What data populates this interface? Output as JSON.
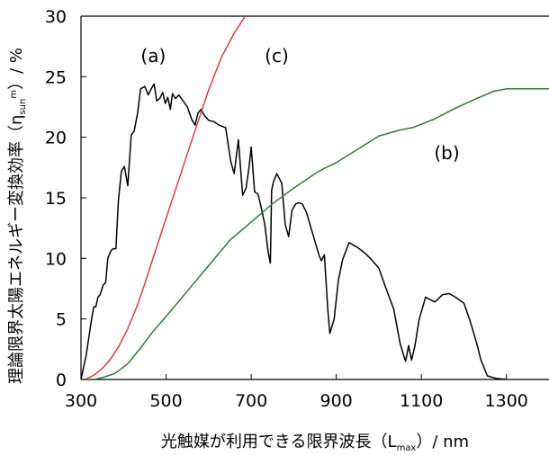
{
  "chart_data": {
    "type": "line",
    "xlabel_parts": [
      "光触媒が利用できる限界波長（L",
      "max",
      "）/ nm"
    ],
    "ylabel_parts": [
      "理論限界太陽エネルギー変換効率（η",
      "sun",
      "m",
      "）/ %"
    ],
    "xlim": [
      300,
      1400
    ],
    "ylim": [
      0,
      30
    ],
    "xticks": [
      300,
      500,
      700,
      900,
      1100,
      1300
    ],
    "yticks": [
      0,
      5,
      10,
      15,
      20,
      25,
      30
    ],
    "grid": false,
    "annotations": [
      {
        "text": "(a)",
        "x": 470,
        "y": 26.2
      },
      {
        "text": "(c)",
        "x": 760,
        "y": 26.2
      },
      {
        "text": "(b)",
        "x": 1160,
        "y": 18.2
      }
    ],
    "series": [
      {
        "id": "a",
        "color": "#000000",
        "points": [
          [
            300,
            0
          ],
          [
            312,
            2
          ],
          [
            325,
            5
          ],
          [
            330,
            6
          ],
          [
            335,
            6
          ],
          [
            340,
            6.8
          ],
          [
            345,
            7
          ],
          [
            352,
            7.8
          ],
          [
            358,
            8
          ],
          [
            363,
            10
          ],
          [
            370,
            10.6
          ],
          [
            375,
            10.8
          ],
          [
            382,
            10.8
          ],
          [
            388,
            14.8
          ],
          [
            395,
            17.2
          ],
          [
            402,
            17.6
          ],
          [
            410,
            16
          ],
          [
            418,
            20.2
          ],
          [
            425,
            20.5
          ],
          [
            433,
            22
          ],
          [
            440,
            24
          ],
          [
            450,
            24.2
          ],
          [
            458,
            23.5
          ],
          [
            465,
            24
          ],
          [
            472,
            24.4
          ],
          [
            478,
            23
          ],
          [
            485,
            23.2
          ],
          [
            492,
            23.7
          ],
          [
            498,
            22.8
          ],
          [
            504,
            23.3
          ],
          [
            510,
            22.3
          ],
          [
            515,
            23.6
          ],
          [
            522,
            23.2
          ],
          [
            530,
            23.5
          ],
          [
            540,
            23
          ],
          [
            550,
            22.5
          ],
          [
            560,
            21.5
          ],
          [
            568,
            21
          ],
          [
            575,
            22
          ],
          [
            582,
            22.3
          ],
          [
            590,
            21.8
          ],
          [
            600,
            21.4
          ],
          [
            612,
            21.3
          ],
          [
            625,
            21
          ],
          [
            640,
            20.8
          ],
          [
            652,
            18
          ],
          [
            660,
            17
          ],
          [
            670,
            19.8
          ],
          [
            680,
            15.2
          ],
          [
            688,
            15.8
          ],
          [
            695,
            17.5
          ],
          [
            700,
            19.2
          ],
          [
            708,
            15.5
          ],
          [
            716,
            15.3
          ],
          [
            725,
            14
          ],
          [
            732,
            12.8
          ],
          [
            740,
            10.5
          ],
          [
            745,
            9.6
          ],
          [
            748,
            15.6
          ],
          [
            752,
            16.3
          ],
          [
            760,
            17
          ],
          [
            772,
            16.2
          ],
          [
            780,
            12.8
          ],
          [
            788,
            11.8
          ],
          [
            796,
            14
          ],
          [
            805,
            14.5
          ],
          [
            812,
            14.6
          ],
          [
            820,
            14.5
          ],
          [
            830,
            13.8
          ],
          [
            845,
            12
          ],
          [
            860,
            10.2
          ],
          [
            865,
            9.8
          ],
          [
            872,
            10.3
          ],
          [
            880,
            5.8
          ],
          [
            885,
            3.8
          ],
          [
            895,
            5
          ],
          [
            905,
            8.2
          ],
          [
            915,
            9.9
          ],
          [
            930,
            11.3
          ],
          [
            950,
            10.9
          ],
          [
            965,
            10.5
          ],
          [
            980,
            10
          ],
          [
            1000,
            9.2
          ],
          [
            1015,
            7.7
          ],
          [
            1035,
            5.8
          ],
          [
            1050,
            3
          ],
          [
            1060,
            1.8
          ],
          [
            1063,
            1.5
          ],
          [
            1070,
            2.8
          ],
          [
            1077,
            1.6
          ],
          [
            1085,
            2.8
          ],
          [
            1095,
            5
          ],
          [
            1110,
            6.8
          ],
          [
            1120,
            6.6
          ],
          [
            1132,
            6.4
          ],
          [
            1150,
            7
          ],
          [
            1165,
            7.1
          ],
          [
            1180,
            6.8
          ],
          [
            1200,
            6.3
          ],
          [
            1215,
            4.8
          ],
          [
            1230,
            3
          ],
          [
            1240,
            1.6
          ],
          [
            1255,
            0.3
          ],
          [
            1275,
            0.1
          ],
          [
            1300,
            0
          ]
        ]
      },
      {
        "id": "b",
        "color": "#2e7d32",
        "points": [
          [
            310,
            0
          ],
          [
            330,
            0
          ],
          [
            350,
            0.15
          ],
          [
            380,
            0.5
          ],
          [
            410,
            1.3
          ],
          [
            440,
            2.6
          ],
          [
            470,
            4.0
          ],
          [
            500,
            5.2
          ],
          [
            550,
            7.3
          ],
          [
            600,
            9.4
          ],
          [
            650,
            11.5
          ],
          [
            700,
            13.0
          ],
          [
            750,
            14.5
          ],
          [
            800,
            15.8
          ],
          [
            850,
            17.0
          ],
          [
            870,
            17.4
          ],
          [
            900,
            17.9
          ],
          [
            950,
            19.0
          ],
          [
            1000,
            20.1
          ],
          [
            1050,
            20.6
          ],
          [
            1080,
            20.8
          ],
          [
            1130,
            21.5
          ],
          [
            1180,
            22.4
          ],
          [
            1230,
            23.2
          ],
          [
            1270,
            23.8
          ],
          [
            1300,
            24.0
          ],
          [
            1350,
            24.0
          ],
          [
            1400,
            24.0
          ]
        ]
      },
      {
        "id": "c",
        "color": "#e53935",
        "points": [
          [
            310,
            0
          ],
          [
            330,
            0.35
          ],
          [
            350,
            0.9
          ],
          [
            370,
            1.7
          ],
          [
            390,
            2.8
          ],
          [
            410,
            4.2
          ],
          [
            430,
            5.9
          ],
          [
            450,
            7.9
          ],
          [
            470,
            10.1
          ],
          [
            500,
            13.3
          ],
          [
            530,
            16.5
          ],
          [
            560,
            19.7
          ],
          [
            600,
            23.9
          ],
          [
            630,
            26.6
          ],
          [
            660,
            28.6
          ],
          [
            686,
            30
          ]
        ]
      }
    ]
  }
}
